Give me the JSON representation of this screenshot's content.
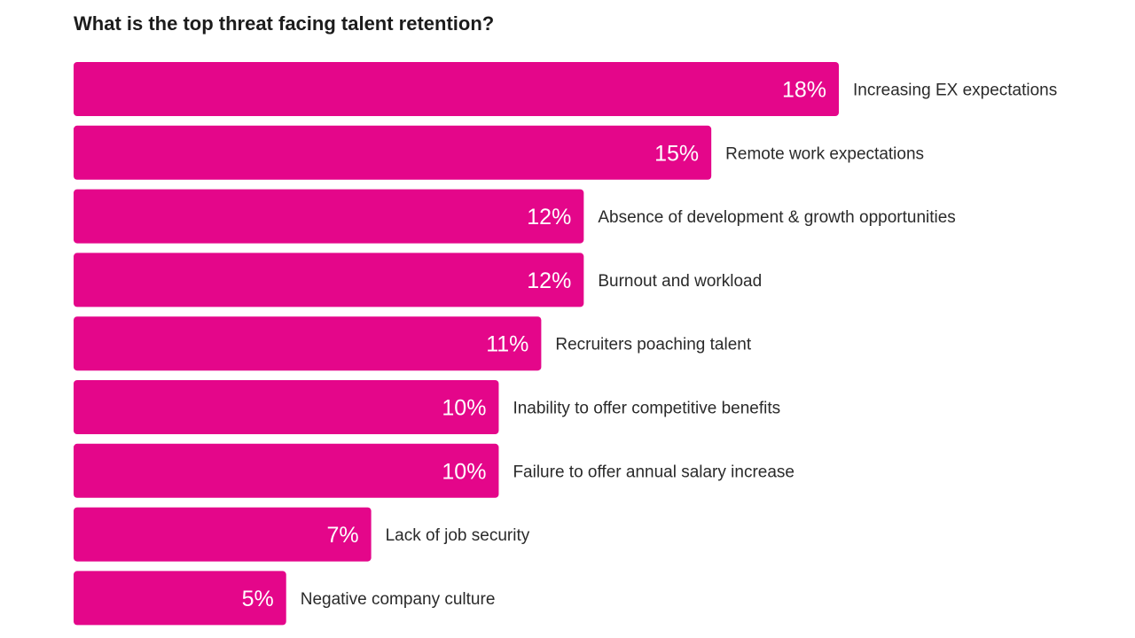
{
  "chart_data": {
    "type": "bar",
    "orientation": "horizontal",
    "title": "What is the top threat facing talent retention?",
    "categories": [
      "Increasing EX expectations",
      "Remote work expectations",
      "Absence of development & growth opportunities",
      "Burnout and workload",
      "Recruiters poaching talent",
      "Inability to offer competitive benefits",
      "Failure to offer annual salary increase",
      "Lack of job security",
      "Negative company culture"
    ],
    "values": [
      18,
      15,
      12,
      12,
      11,
      10,
      10,
      7,
      5
    ],
    "value_labels": [
      "18%",
      "15%",
      "12%",
      "12%",
      "11%",
      "10%",
      "10%",
      "7%",
      "5%"
    ],
    "unit": "%",
    "xlim": [
      0,
      18
    ],
    "grid": false,
    "legend": "none",
    "bar_color": "#e4068a"
  }
}
